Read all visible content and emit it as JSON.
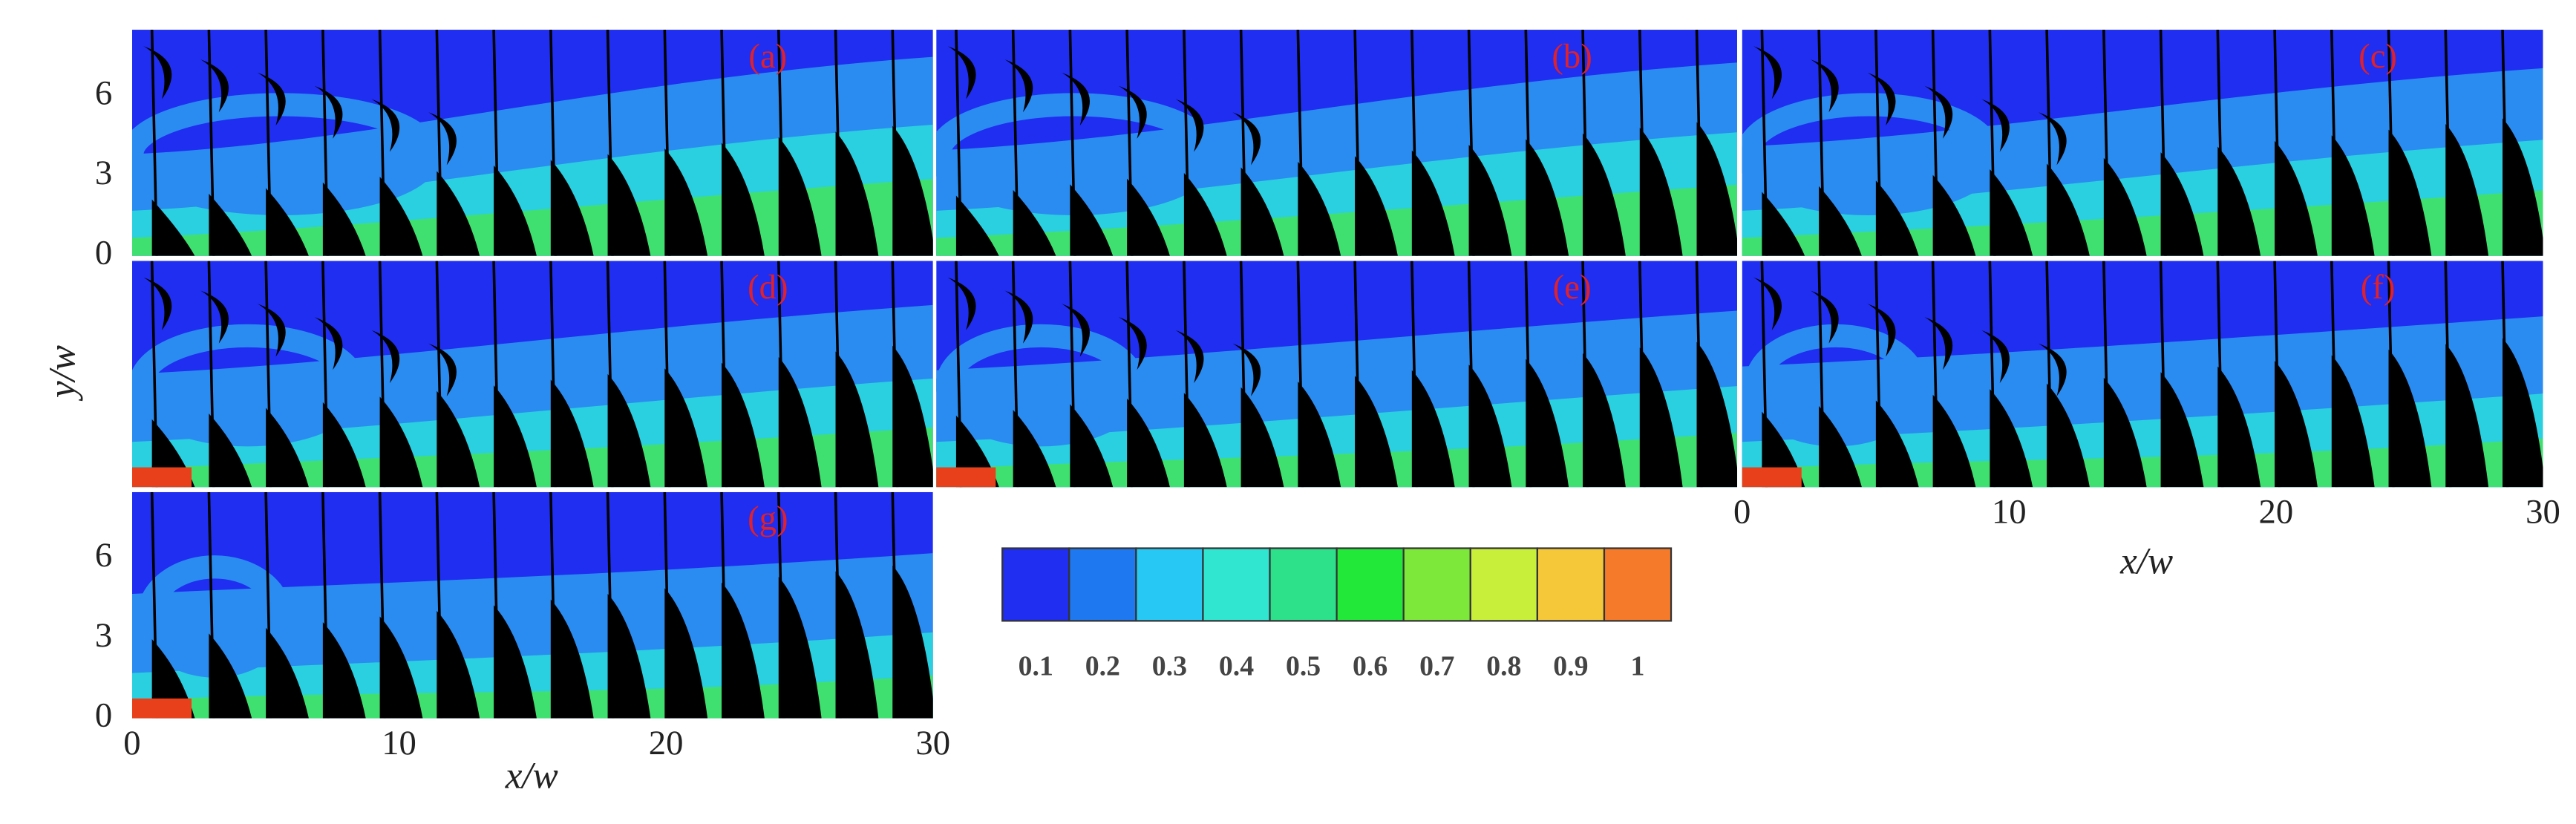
{
  "panels": [
    {
      "label": "(a)"
    },
    {
      "label": "(b)"
    },
    {
      "label": "(c)"
    },
    {
      "label": "(d)"
    },
    {
      "label": "(e)"
    },
    {
      "label": "(f)"
    },
    {
      "label": "(g)"
    }
  ],
  "x_axis": {
    "label": "x/w",
    "range": [
      0,
      30
    ],
    "ticks": [
      0,
      10,
      20,
      30
    ]
  },
  "y_axis": {
    "label": "y/w",
    "range": [
      0,
      8.5
    ],
    "ticks": [
      0,
      3,
      6
    ]
  },
  "colorbar": {
    "colors": [
      "#1f2ef0",
      "#1e78f0",
      "#28c8f5",
      "#30e6d0",
      "#2de08a",
      "#22e83a",
      "#7ee83a",
      "#c8f03a",
      "#f5c83a",
      "#f57a2a"
    ],
    "labels": [
      0.1,
      0.2,
      0.3,
      0.4,
      0.5,
      0.6,
      0.7,
      0.8,
      0.9,
      1
    ]
  }
}
